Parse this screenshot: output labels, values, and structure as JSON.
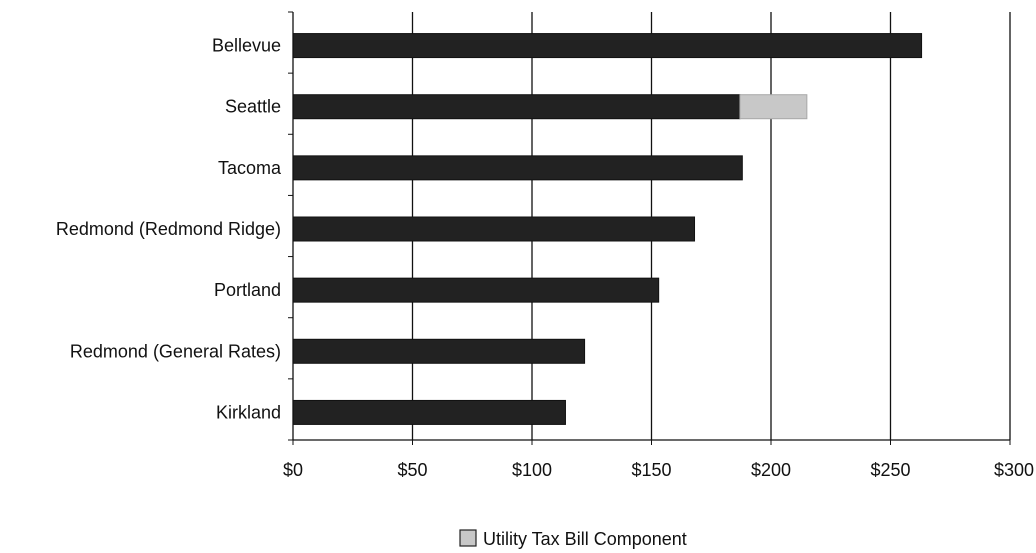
{
  "chart_data": {
    "type": "bar",
    "orientation": "horizontal",
    "categories": [
      "Bellevue",
      "Seattle",
      "Tacoma",
      "Redmond (Redmond Ridge)",
      "Portland",
      "Redmond (General Rates)",
      "Kirkland"
    ],
    "series": [
      {
        "values": [
          263,
          187,
          188,
          168,
          153,
          122,
          114
        ],
        "color": "#222222"
      },
      {
        "name": "Utility Tax Bill Component",
        "values": [
          0,
          28,
          0,
          0,
          0,
          0,
          0
        ],
        "color": "#c8c8c8"
      }
    ],
    "stacked": true,
    "xlim": [
      0,
      300
    ],
    "x_tick_values": [
      0,
      50,
      100,
      150,
      200,
      250,
      300
    ],
    "x_tick_labels": [
      "$0",
      "$50",
      "$100",
      "$150",
      "$200",
      "$250",
      "$300"
    ],
    "grid": "vertical",
    "legend_position": "bottom"
  }
}
